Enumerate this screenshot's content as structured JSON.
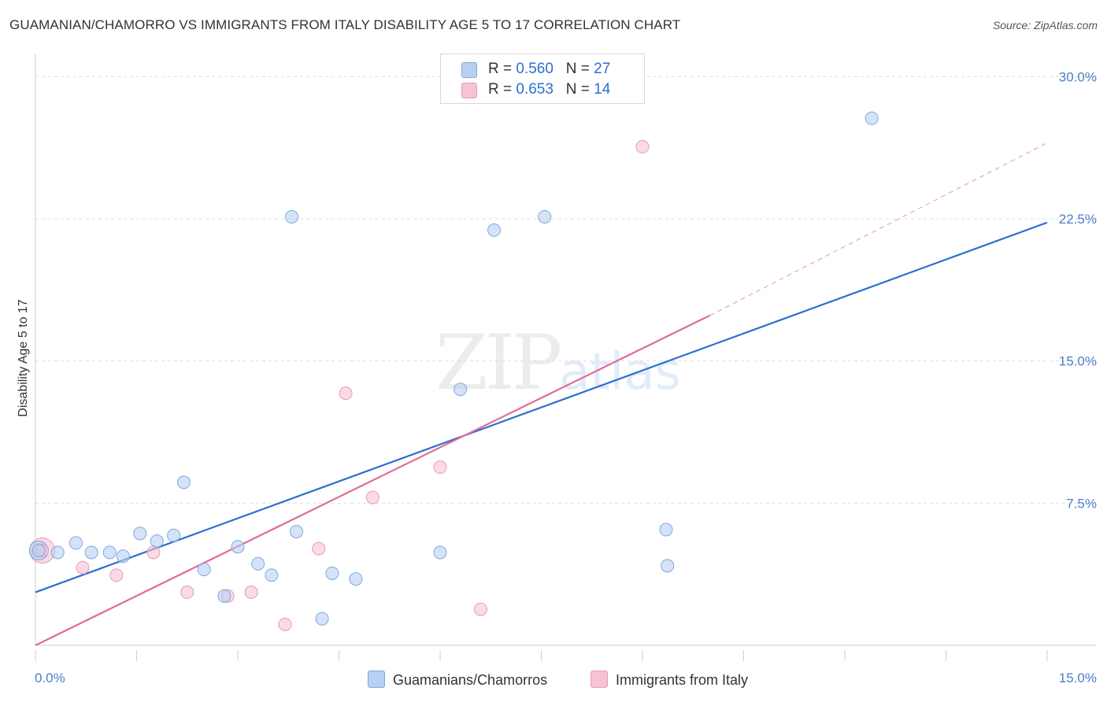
{
  "header": {
    "title": "GUAMANIAN/CHAMORRO VS IMMIGRANTS FROM ITALY DISABILITY AGE 5 TO 17 CORRELATION CHART",
    "source": "Source: ZipAtlas.com"
  },
  "watermark": {
    "zip": "ZIP",
    "atlas": "atlas"
  },
  "legend": {
    "series1": {
      "r_label": "R = ",
      "r_value": "0.560",
      "n_label": "N = ",
      "n_value": "27"
    },
    "series2": {
      "r_label": "R = ",
      "r_value": "0.653",
      "n_label": "N = ",
      "n_value": "14"
    }
  },
  "bottom_legend": {
    "series1": "Guamanians/Chamorros",
    "series2": "Immigrants from Italy"
  },
  "chart_data": {
    "type": "scatter",
    "title": "GUAMANIAN/CHAMORRO VS IMMIGRANTS FROM ITALY DISABILITY AGE 5 TO 17 CORRELATION CHART",
    "xlabel": "",
    "ylabel": "Disability Age 5 to 17",
    "xlim": [
      0,
      15
    ],
    "ylim": [
      0,
      30.8
    ],
    "x_tick_labels": {
      "min": "0.0%",
      "max": "15.0%"
    },
    "y_ticks": [
      {
        "value": 7.5,
        "label": "7.5%"
      },
      {
        "value": 15.0,
        "label": "15.0%"
      },
      {
        "value": 22.5,
        "label": "22.5%"
      },
      {
        "value": 30.0,
        "label": "30.0%"
      }
    ],
    "colors": {
      "series1": "#2c6fd1",
      "series1_fill": "#b7d0f2",
      "series2": "#e06b97",
      "series2_fill": "#f7c3d4"
    },
    "series": [
      {
        "name": "Guamanians/Chamorros",
        "points": [
          [
            0.05,
            5.0
          ],
          [
            0.33,
            4.9
          ],
          [
            0.6,
            5.4
          ],
          [
            0.83,
            4.9
          ],
          [
            1.1,
            4.9
          ],
          [
            1.3,
            4.7
          ],
          [
            1.55,
            5.9
          ],
          [
            1.8,
            5.5
          ],
          [
            2.05,
            5.8
          ],
          [
            2.2,
            8.6
          ],
          [
            2.5,
            4.0
          ],
          [
            2.8,
            2.6
          ],
          [
            3.0,
            5.2
          ],
          [
            3.3,
            4.3
          ],
          [
            3.5,
            3.7
          ],
          [
            3.8,
            22.6
          ],
          [
            3.87,
            6.0
          ],
          [
            4.25,
            1.4
          ],
          [
            4.4,
            3.8
          ],
          [
            4.75,
            3.5
          ],
          [
            6.0,
            4.9
          ],
          [
            6.3,
            13.5
          ],
          [
            6.8,
            21.9
          ],
          [
            7.55,
            22.6
          ],
          [
            9.35,
            6.1
          ],
          [
            9.37,
            4.2
          ],
          [
            12.4,
            27.8
          ]
        ],
        "trend": {
          "x0": 0.0,
          "y0": 2.8,
          "x1": 15.0,
          "y1": 22.3
        }
      },
      {
        "name": "Immigrants from Italy",
        "points": [
          [
            0.1,
            5.0
          ],
          [
            0.7,
            4.1
          ],
          [
            1.2,
            3.7
          ],
          [
            1.75,
            4.9
          ],
          [
            2.25,
            2.8
          ],
          [
            2.85,
            2.6
          ],
          [
            3.2,
            2.8
          ],
          [
            3.7,
            1.1
          ],
          [
            4.2,
            5.1
          ],
          [
            4.6,
            13.3
          ],
          [
            5.0,
            7.8
          ],
          [
            6.0,
            9.4
          ],
          [
            6.6,
            1.9
          ],
          [
            9.0,
            26.3
          ]
        ],
        "trend": {
          "x0": 0.0,
          "y0": 0.0,
          "x1": 10.0,
          "y1": 17.4
        },
        "trend_extension": {
          "x0": 10.0,
          "y0": 17.4,
          "x1": 15.0,
          "y1": 26.5
        }
      }
    ]
  }
}
